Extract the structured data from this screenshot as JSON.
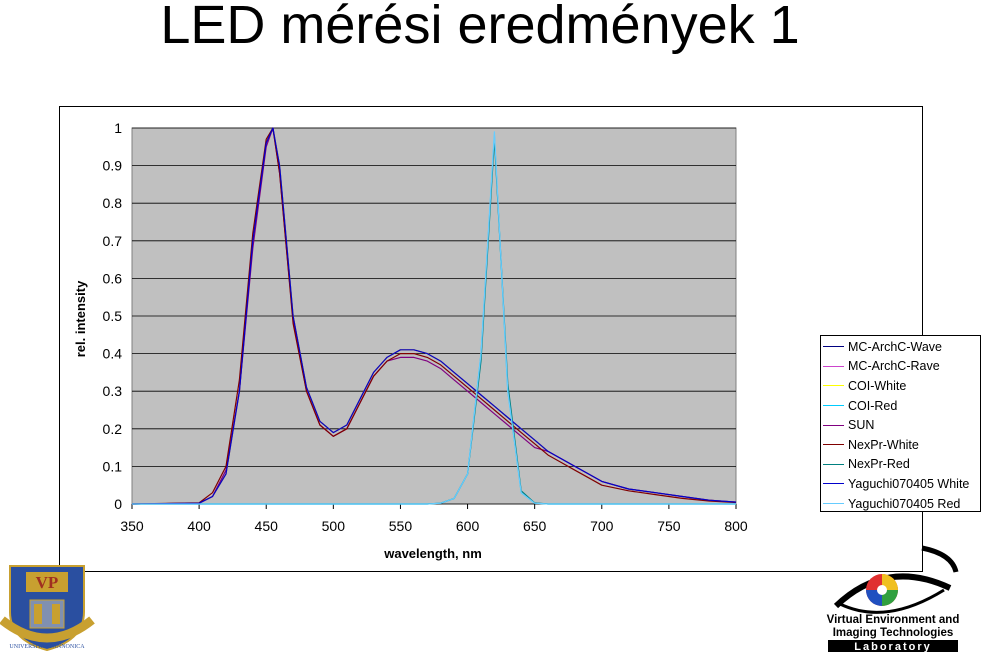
{
  "slide": {
    "title": "LED mérési eredmények 1"
  },
  "chart_data": {
    "type": "line",
    "xlabel": "wavelength, nm",
    "ylabel": "rel. intensity",
    "xlim": [
      350,
      800
    ],
    "ylim": [
      0,
      1
    ],
    "x_ticks": [
      "350",
      "400",
      "450",
      "500",
      "550",
      "600",
      "650",
      "700",
      "750",
      "800"
    ],
    "y_ticks": [
      "0",
      "0.1",
      "0.2",
      "0.3",
      "0.4",
      "0.5",
      "0.6",
      "0.7",
      "0.8",
      "0.9",
      "1"
    ],
    "grid": true,
    "plot_background": "#c0c0c0",
    "legend_position": "right",
    "x": [
      350,
      400,
      410,
      420,
      430,
      440,
      450,
      455,
      460,
      465,
      470,
      480,
      490,
      500,
      510,
      520,
      530,
      540,
      550,
      560,
      570,
      580,
      590,
      600,
      610,
      620,
      630,
      640,
      650,
      660,
      670,
      680,
      690,
      700,
      720,
      740,
      760,
      780,
      800
    ],
    "series": [
      {
        "name": "MC-ArchC-Wave",
        "color": "#000080",
        "values": [
          0,
          0.002,
          0.02,
          0.08,
          0.3,
          0.7,
          0.96,
          1.0,
          0.9,
          0.7,
          0.5,
          0.31,
          0.22,
          0.19,
          0.21,
          0.28,
          0.35,
          0.39,
          0.41,
          0.41,
          0.4,
          0.38,
          0.35,
          0.32,
          0.29,
          0.26,
          0.23,
          0.2,
          0.17,
          0.14,
          0.12,
          0.1,
          0.08,
          0.06,
          0.04,
          0.03,
          0.02,
          0.01,
          0.005
        ]
      },
      {
        "name": "MC-ArchC-Rave",
        "color": "#cc44cc",
        "values": [
          0,
          0.002,
          0.02,
          0.08,
          0.3,
          0.7,
          0.96,
          1.0,
          0.9,
          0.7,
          0.5,
          0.31,
          0.22,
          0.19,
          0.21,
          0.28,
          0.35,
          0.39,
          0.41,
          0.41,
          0.4,
          0.38,
          0.35,
          0.32,
          0.29,
          0.26,
          0.23,
          0.2,
          0.17,
          0.14,
          0.12,
          0.1,
          0.08,
          0.06,
          0.04,
          0.03,
          0.02,
          0.01,
          0.005
        ]
      },
      {
        "name": "COI-White",
        "color": "#ffff00",
        "values": [
          0,
          0.002,
          0.02,
          0.08,
          0.3,
          0.7,
          0.96,
          1.0,
          0.9,
          0.7,
          0.5,
          0.31,
          0.22,
          0.19,
          0.21,
          0.28,
          0.35,
          0.39,
          0.41,
          0.41,
          0.4,
          0.38,
          0.35,
          0.32,
          0.29,
          0.26,
          0.23,
          0.2,
          0.17,
          0.14,
          0.12,
          0.1,
          0.08,
          0.06,
          0.04,
          0.03,
          0.02,
          0.01,
          0.005
        ]
      },
      {
        "name": "COI-Red",
        "color": "#00ccff",
        "values": [
          0,
          0,
          0,
          0,
          0,
          0,
          0,
          0,
          0,
          0,
          0,
          0,
          0,
          0,
          0,
          0,
          0,
          0,
          0,
          0,
          0,
          0.002,
          0.015,
          0.08,
          0.4,
          0.98,
          0.3,
          0.03,
          0.002,
          0,
          0,
          0,
          0,
          0,
          0,
          0,
          0,
          0,
          0
        ]
      },
      {
        "name": "SUN",
        "color": "#800080",
        "values": [
          0,
          0.002,
          0.02,
          0.09,
          0.3,
          0.68,
          0.95,
          1.0,
          0.88,
          0.68,
          0.49,
          0.3,
          0.21,
          0.18,
          0.2,
          0.27,
          0.34,
          0.38,
          0.39,
          0.39,
          0.38,
          0.36,
          0.33,
          0.3,
          0.27,
          0.24,
          0.21,
          0.18,
          0.15,
          0.14,
          0.12,
          0.1,
          0.08,
          0.06,
          0.04,
          0.03,
          0.02,
          0.01,
          0.005
        ]
      },
      {
        "name": "NexPr-White",
        "color": "#800000",
        "values": [
          0,
          0.003,
          0.03,
          0.1,
          0.33,
          0.72,
          0.97,
          1.0,
          0.88,
          0.68,
          0.48,
          0.3,
          0.21,
          0.18,
          0.2,
          0.27,
          0.34,
          0.38,
          0.4,
          0.4,
          0.39,
          0.37,
          0.34,
          0.31,
          0.28,
          0.25,
          0.22,
          0.19,
          0.16,
          0.13,
          0.11,
          0.09,
          0.07,
          0.05,
          0.035,
          0.025,
          0.015,
          0.008,
          0.004
        ]
      },
      {
        "name": "NexPr-Red",
        "color": "#008080",
        "values": [
          0,
          0,
          0,
          0,
          0,
          0,
          0,
          0,
          0,
          0,
          0,
          0,
          0,
          0,
          0,
          0,
          0,
          0,
          0,
          0,
          0,
          0.002,
          0.015,
          0.08,
          0.38,
          0.97,
          0.32,
          0.035,
          0.003,
          0,
          0,
          0,
          0,
          0,
          0,
          0,
          0,
          0,
          0
        ]
      },
      {
        "name": "Yaguchi070405 White",
        "color": "#0000cc",
        "values": [
          0,
          0.002,
          0.02,
          0.08,
          0.3,
          0.7,
          0.96,
          1.0,
          0.9,
          0.7,
          0.5,
          0.31,
          0.22,
          0.19,
          0.21,
          0.28,
          0.35,
          0.39,
          0.41,
          0.41,
          0.4,
          0.38,
          0.35,
          0.32,
          0.29,
          0.26,
          0.23,
          0.2,
          0.17,
          0.14,
          0.12,
          0.1,
          0.08,
          0.06,
          0.04,
          0.03,
          0.02,
          0.01,
          0.005
        ]
      },
      {
        "name": "Yaguchi070405 Red",
        "color": "#66ccff",
        "values": [
          0,
          0,
          0,
          0,
          0,
          0,
          0,
          0,
          0,
          0,
          0,
          0,
          0,
          0,
          0,
          0,
          0,
          0,
          0,
          0,
          0,
          0.002,
          0.015,
          0.08,
          0.4,
          0.99,
          0.3,
          0.03,
          0.002,
          0,
          0,
          0,
          0,
          0,
          0,
          0,
          0,
          0,
          0
        ]
      }
    ]
  },
  "logos": {
    "university_text": "UNIVERSITAS PANNONICA",
    "university_monogram": "VP",
    "lab_line1": "Virtual Environment and",
    "lab_line2": "Imaging Technologies",
    "lab_line3": "Laboratory"
  }
}
